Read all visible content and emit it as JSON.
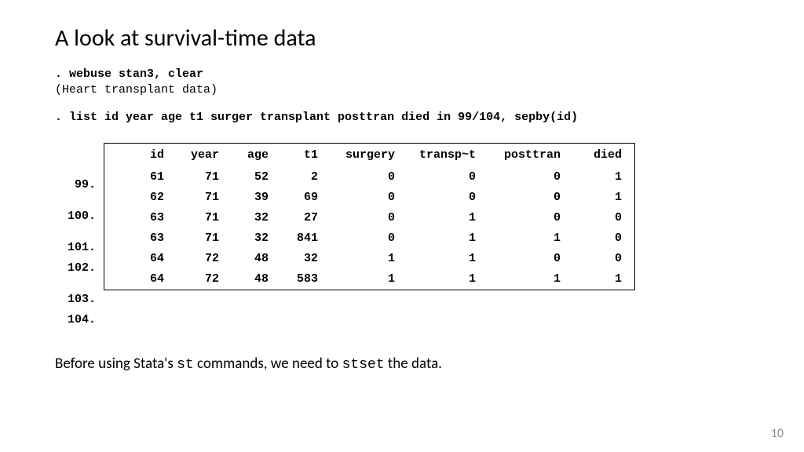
{
  "title": "A look at survival-time data",
  "cmd1": ". webuse stan3, clear",
  "cmd1_desc": "(Heart transplant data)",
  "cmd2": ". list id year age t1 surger transplant posttran died in 99/104, sepby(id)",
  "table": {
    "columns": [
      "id",
      "year",
      "age",
      "t1",
      "surgery",
      "transp~t",
      "posttran",
      "died"
    ],
    "groups": [
      {
        "rows": [
          {
            "n": "99.",
            "v": [
              "61",
              "71",
              "52",
              "2",
              "0",
              "0",
              "0",
              "1"
            ]
          }
        ]
      },
      {
        "rows": [
          {
            "n": "100.",
            "v": [
              "62",
              "71",
              "39",
              "69",
              "0",
              "0",
              "0",
              "1"
            ]
          }
        ]
      },
      {
        "rows": [
          {
            "n": "101.",
            "v": [
              "63",
              "71",
              "32",
              "27",
              "0",
              "1",
              "0",
              "0"
            ]
          },
          {
            "n": "102.",
            "v": [
              "63",
              "71",
              "32",
              "841",
              "0",
              "1",
              "1",
              "0"
            ]
          }
        ]
      },
      {
        "rows": [
          {
            "n": "103.",
            "v": [
              "64",
              "72",
              "48",
              "32",
              "1",
              "1",
              "0",
              "0"
            ]
          },
          {
            "n": "104.",
            "v": [
              "64",
              "72",
              "48",
              "583",
              "1",
              "1",
              "1",
              "1"
            ]
          }
        ]
      }
    ]
  },
  "footer": {
    "pre": "Before using Stata's ",
    "st": "st",
    "mid": " commands, we need to ",
    "stset": "stset",
    "post": " the data."
  },
  "page": "10"
}
